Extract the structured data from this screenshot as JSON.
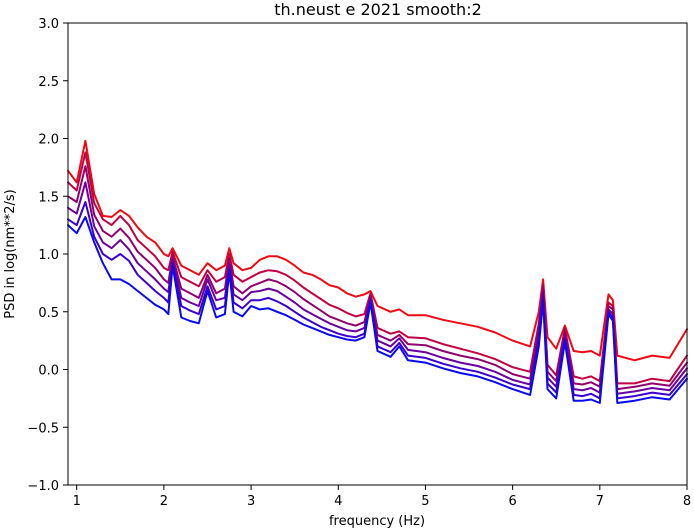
{
  "chart_data": {
    "type": "line",
    "title": "th.neust e 2021 smooth:2",
    "xlabel": "frequency (Hz)",
    "ylabel": "PSD in log(nm**2/s)",
    "xlim": [
      0.9,
      8.0
    ],
    "ylim": [
      -1.0,
      3.0
    ],
    "x_ticks": [
      "1",
      "2",
      "3",
      "4",
      "5",
      "6",
      "7",
      "8"
    ],
    "y_ticks": [
      "3.0",
      "2.5",
      "2.0",
      "1.5",
      "1.0",
      "0.5",
      "0.0",
      "−0.5",
      "−1.0"
    ],
    "grid": false,
    "legend": "none",
    "x": [
      0.9,
      1.0,
      1.1,
      1.2,
      1.3,
      1.4,
      1.5,
      1.6,
      1.7,
      1.8,
      1.9,
      2.0,
      2.05,
      2.1,
      2.2,
      2.3,
      2.4,
      2.5,
      2.6,
      2.7,
      2.75,
      2.8,
      2.9,
      3.0,
      3.1,
      3.2,
      3.3,
      3.4,
      3.5,
      3.6,
      3.7,
      3.8,
      3.9,
      4.0,
      4.1,
      4.2,
      4.3,
      4.37,
      4.45,
      4.6,
      4.7,
      4.8,
      5.0,
      5.2,
      5.4,
      5.6,
      5.8,
      6.0,
      6.2,
      6.3,
      6.35,
      6.4,
      6.5,
      6.6,
      6.7,
      6.8,
      6.9,
      7.0,
      7.1,
      7.15,
      7.2,
      7.4,
      7.6,
      7.8,
      8.0
    ],
    "series": [
      {
        "color": "#ee0a14",
        "values": [
          1.72,
          1.62,
          1.98,
          1.52,
          1.33,
          1.32,
          1.38,
          1.33,
          1.23,
          1.15,
          1.1,
          1.0,
          0.98,
          1.05,
          0.9,
          0.86,
          0.82,
          0.92,
          0.86,
          0.9,
          1.05,
          0.92,
          0.86,
          0.88,
          0.95,
          0.98,
          0.98,
          0.95,
          0.9,
          0.84,
          0.82,
          0.78,
          0.73,
          0.71,
          0.66,
          0.63,
          0.65,
          0.68,
          0.55,
          0.5,
          0.52,
          0.47,
          0.47,
          0.43,
          0.4,
          0.37,
          0.32,
          0.25,
          0.2,
          0.5,
          0.78,
          0.28,
          0.18,
          0.38,
          0.16,
          0.15,
          0.16,
          0.12,
          0.65,
          0.6,
          0.12,
          0.08,
          0.12,
          0.1,
          0.35
        ]
      },
      {
        "color": "#c10040",
        "values": [
          1.62,
          1.55,
          1.88,
          1.44,
          1.3,
          1.25,
          1.33,
          1.25,
          1.12,
          1.05,
          0.98,
          0.88,
          0.86,
          1.02,
          0.8,
          0.76,
          0.72,
          0.86,
          0.76,
          0.8,
          1.0,
          0.82,
          0.76,
          0.8,
          0.84,
          0.86,
          0.85,
          0.82,
          0.77,
          0.71,
          0.66,
          0.61,
          0.56,
          0.53,
          0.49,
          0.46,
          0.48,
          0.66,
          0.36,
          0.31,
          0.33,
          0.28,
          0.27,
          0.22,
          0.18,
          0.14,
          0.09,
          0.02,
          -0.02,
          0.4,
          0.74,
          0.04,
          -0.05,
          0.36,
          -0.06,
          -0.08,
          -0.06,
          -0.1,
          0.58,
          0.55,
          -0.12,
          -0.12,
          -0.08,
          -0.1,
          0.12
        ]
      },
      {
        "color": "#900070",
        "values": [
          1.5,
          1.45,
          1.76,
          1.34,
          1.2,
          1.15,
          1.22,
          1.14,
          1.02,
          0.95,
          0.88,
          0.78,
          0.75,
          0.98,
          0.7,
          0.66,
          0.62,
          0.82,
          0.66,
          0.7,
          0.96,
          0.72,
          0.66,
          0.72,
          0.75,
          0.78,
          0.76,
          0.72,
          0.67,
          0.61,
          0.56,
          0.51,
          0.46,
          0.43,
          0.4,
          0.38,
          0.41,
          0.64,
          0.3,
          0.25,
          0.3,
          0.22,
          0.21,
          0.16,
          0.12,
          0.09,
          0.04,
          -0.04,
          -0.08,
          0.35,
          0.7,
          -0.02,
          -0.1,
          0.33,
          -0.12,
          -0.13,
          -0.11,
          -0.15,
          0.55,
          0.52,
          -0.17,
          -0.15,
          -0.12,
          -0.14,
          0.06
        ]
      },
      {
        "color": "#6a00a0",
        "values": [
          1.4,
          1.35,
          1.62,
          1.24,
          1.1,
          1.05,
          1.12,
          1.04,
          0.92,
          0.85,
          0.78,
          0.7,
          0.67,
          0.95,
          0.62,
          0.58,
          0.55,
          0.78,
          0.6,
          0.62,
          0.92,
          0.65,
          0.6,
          0.67,
          0.68,
          0.7,
          0.68,
          0.63,
          0.58,
          0.52,
          0.48,
          0.44,
          0.4,
          0.37,
          0.34,
          0.33,
          0.36,
          0.62,
          0.25,
          0.2,
          0.27,
          0.17,
          0.15,
          0.1,
          0.06,
          0.03,
          -0.02,
          -0.09,
          -0.13,
          0.3,
          0.67,
          -0.07,
          -0.15,
          0.3,
          -0.17,
          -0.18,
          -0.16,
          -0.2,
          0.52,
          0.48,
          -0.21,
          -0.19,
          -0.16,
          -0.18,
          0.01
        ]
      },
      {
        "color": "#3a00d0",
        "values": [
          1.3,
          1.25,
          1.45,
          1.15,
          1.0,
          0.95,
          1.0,
          0.94,
          0.82,
          0.75,
          0.68,
          0.62,
          0.58,
          0.92,
          0.55,
          0.51,
          0.48,
          0.72,
          0.52,
          0.55,
          0.88,
          0.58,
          0.53,
          0.6,
          0.6,
          0.62,
          0.59,
          0.55,
          0.5,
          0.45,
          0.41,
          0.37,
          0.34,
          0.31,
          0.29,
          0.28,
          0.31,
          0.6,
          0.2,
          0.15,
          0.23,
          0.12,
          0.1,
          0.05,
          0.01,
          -0.02,
          -0.07,
          -0.13,
          -0.17,
          0.25,
          0.64,
          -0.12,
          -0.2,
          0.27,
          -0.22,
          -0.23,
          -0.21,
          -0.25,
          0.5,
          0.45,
          -0.25,
          -0.23,
          -0.2,
          -0.22,
          -0.04
        ]
      },
      {
        "color": "#0a0aee",
        "values": [
          1.25,
          1.18,
          1.32,
          1.1,
          0.92,
          0.78,
          0.78,
          0.74,
          0.68,
          0.62,
          0.56,
          0.52,
          0.48,
          0.9,
          0.45,
          0.42,
          0.4,
          0.68,
          0.45,
          0.48,
          0.85,
          0.5,
          0.46,
          0.55,
          0.52,
          0.53,
          0.5,
          0.47,
          0.43,
          0.39,
          0.36,
          0.33,
          0.3,
          0.28,
          0.26,
          0.25,
          0.28,
          0.58,
          0.16,
          0.11,
          0.2,
          0.08,
          0.06,
          0.01,
          -0.03,
          -0.06,
          -0.11,
          -0.17,
          -0.22,
          0.2,
          0.6,
          -0.17,
          -0.25,
          0.24,
          -0.27,
          -0.27,
          -0.26,
          -0.29,
          0.48,
          0.42,
          -0.29,
          -0.27,
          -0.24,
          -0.26,
          -0.08
        ]
      }
    ]
  }
}
